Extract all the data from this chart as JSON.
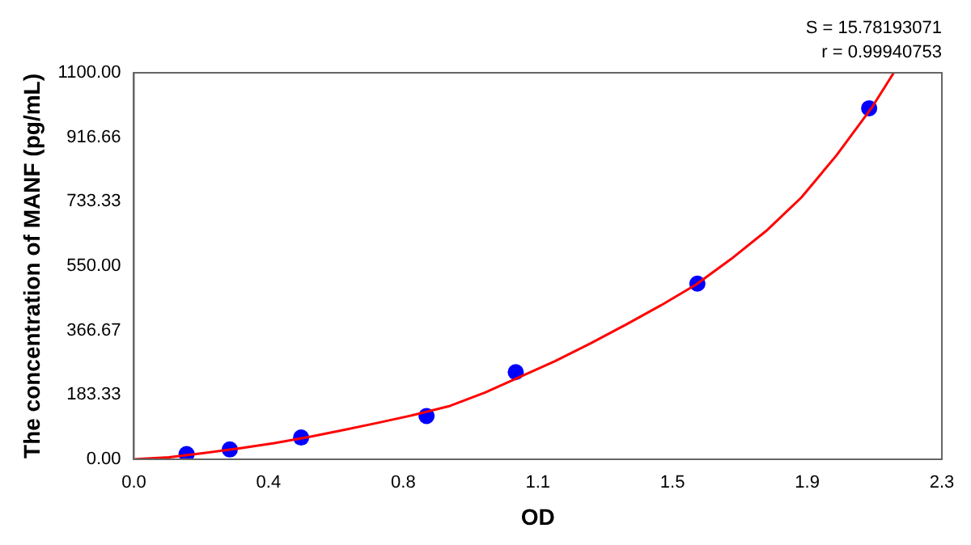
{
  "chart_data": {
    "type": "scatter",
    "xlabel": "OD",
    "ylabel": "The concentration of MANF (pg/mL)",
    "annotations": [
      "S = 15.78193071",
      "r = 0.99940753"
    ],
    "series": [
      {
        "color": "#0000ff",
        "marker": "circle",
        "x": [
          0.15,
          0.273,
          0.476,
          0.833,
          1.087,
          1.604,
          2.093
        ],
        "values": [
          15,
          28,
          62,
          123,
          248,
          500,
          999
        ]
      },
      {
        "type": "line",
        "color": "#ff0000",
        "marker": "none",
        "line_style": "solid",
        "x": [
          0,
          0.1,
          0.2,
          0.3,
          0.4,
          0.5,
          0.6,
          0.7,
          0.8,
          0.9,
          1.0,
          1.1,
          1.2,
          1.3,
          1.4,
          1.5,
          1.6,
          1.7,
          1.8,
          1.9,
          2.0,
          2.1,
          2.163
        ],
        "values": [
          0,
          6,
          18,
          31,
          46,
          64,
          84,
          105,
          127,
          152,
          190,
          235,
          280,
          330,
          383,
          438,
          497,
          570,
          650,
          745,
          865,
          1000,
          1100
        ]
      }
    ],
    "xlim": [
      0,
      2.3
    ],
    "xticks": [
      {
        "value": 0,
        "label": "0.0"
      },
      {
        "value": 0.3833,
        "label": "0.4"
      },
      {
        "value": 0.7667,
        "label": "0.8"
      },
      {
        "value": 1.15,
        "label": "1.1"
      },
      {
        "value": 1.5333,
        "label": "1.5"
      },
      {
        "value": 1.9167,
        "label": "1.9"
      },
      {
        "value": 2.3,
        "label": "2.3"
      }
    ],
    "ylim": [
      0,
      1100
    ],
    "yticks": [
      {
        "value": 0,
        "label": "0.00"
      },
      {
        "value": 183.33,
        "label": "183.33"
      },
      {
        "value": 366.67,
        "label": "366.67"
      },
      {
        "value": 550,
        "label": "550.00"
      },
      {
        "value": 733.33,
        "label": "733.33"
      },
      {
        "value": 916.66,
        "label": "916.66"
      },
      {
        "value": 1100,
        "label": "1100.00"
      }
    ],
    "grid": false,
    "legend": false
  }
}
